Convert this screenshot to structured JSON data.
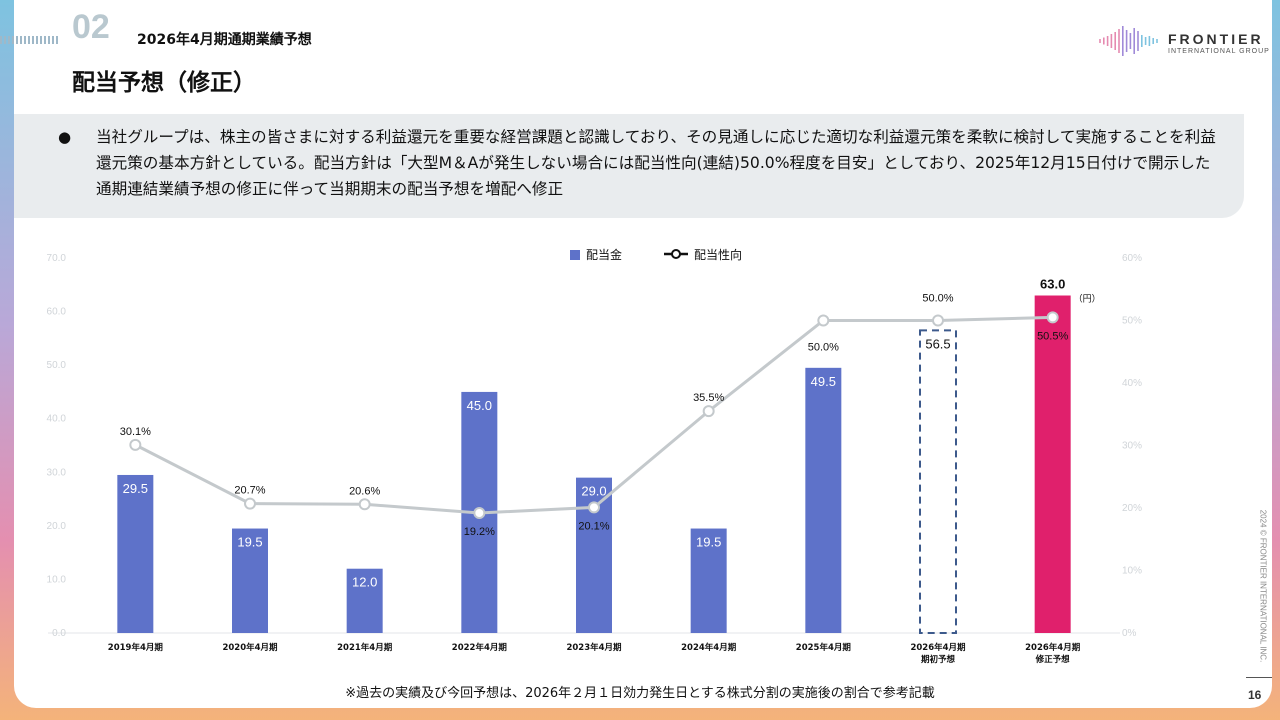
{
  "header": {
    "section_number": "02",
    "section_title": "2026年4月期通期業績予想",
    "page_title": "配当予想（修正）"
  },
  "logo": {
    "line1": "FRONTIER",
    "line2": "INTERNATIONAL GROUP"
  },
  "note": {
    "bullet": "●",
    "text": "当社グループは、株主の皆さまに対する利益還元を重要な経営課題と認識しており、その見通しに応じた適切な利益還元策を柔軟に検討して実施することを利益還元策の基本方針としている。配当方針は「大型M＆Aが発生しない場合には配当性向(連結)50.0%程度を目安」としており、2025年12月15日付けで開示した通期連結業績予想の修正に伴って当期期末の配当予想を増配へ修正"
  },
  "chart_data": {
    "type": "bar",
    "categories": [
      [
        "2019年4月期"
      ],
      [
        "2020年4月期"
      ],
      [
        "2021年4月期"
      ],
      [
        "2022年4月期"
      ],
      [
        "2023年4月期"
      ],
      [
        "2024年4月期"
      ],
      [
        "2025年4月期"
      ],
      [
        "2026年4月期",
        "期初予想"
      ],
      [
        "2026年4月期",
        "修正予想"
      ]
    ],
    "series": [
      {
        "name": "配当金",
        "type": "bar",
        "axis": "left",
        "values": [
          29.5,
          19.5,
          12.0,
          45.0,
          29.0,
          19.5,
          49.5,
          56.5,
          63.0
        ],
        "labels": [
          "29.5",
          "19.5",
          "12.0",
          "45.0",
          "29.0",
          "19.5",
          "49.5",
          "56.5",
          "63.0"
        ],
        "colors": [
          "#5e72c9",
          "#5e72c9",
          "#5e72c9",
          "#5e72c9",
          "#5e72c9",
          "#5e72c9",
          "#5e72c9",
          "none",
          "#e0206c"
        ],
        "styles": [
          "solid",
          "solid",
          "solid",
          "solid",
          "solid",
          "solid",
          "solid",
          "dashed",
          "solid"
        ]
      },
      {
        "name": "配当性向",
        "type": "line",
        "axis": "right",
        "values": [
          30.1,
          20.7,
          20.6,
          19.2,
          20.1,
          35.5,
          50.0,
          50.0,
          50.5
        ],
        "labels": [
          "30.1%",
          "20.7%",
          "20.6%",
          "19.2%",
          "20.1%",
          "35.5%",
          "50.0%",
          "50.0%",
          "50.5%"
        ],
        "color": "#c4c9cc"
      }
    ],
    "y_left": {
      "ticks": [
        "0.0",
        "10.0",
        "20.0",
        "30.0",
        "40.0",
        "50.0",
        "60.0",
        "70.0"
      ],
      "range": [
        0,
        70
      ]
    },
    "y_right": {
      "ticks": [
        "0%",
        "10%",
        "20%",
        "30%",
        "40%",
        "50%",
        "60%"
      ],
      "range": [
        0,
        60
      ]
    },
    "unit_label": "（円）",
    "legend_position": "top-center",
    "grid": false
  },
  "footnote": "※過去の実績及び今回予想は、2026年２月１日効力発生日とする株式分割の実施後の割合で参考記載",
  "copyright": "2024 © FRONTIER INTERNATIONAL INC.",
  "page_number": "16"
}
